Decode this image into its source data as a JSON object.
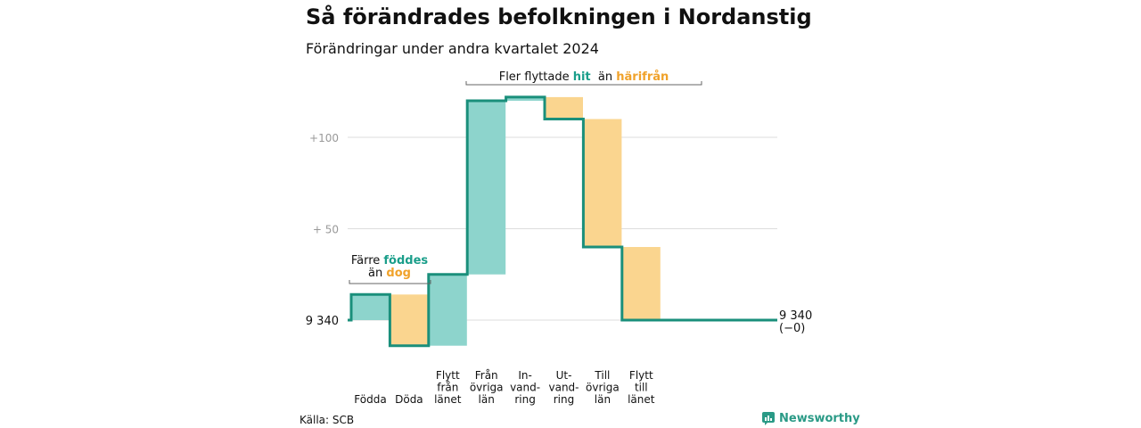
{
  "title": "Så förändrades befolkningen i Nordanstig",
  "subtitle": "Förändringar under andra kvartalet 2024",
  "source": "Källa: SCB",
  "brand": "Newsworthy",
  "colors": {
    "inflow": "#8dd4cc",
    "outflow": "#fad58f",
    "line": "#1a8f7b",
    "hit": "#1a9e8a",
    "harifran": "#f0a22a",
    "grid": "#dddddd"
  },
  "chart_data": {
    "type": "waterfall",
    "baseline": 9340,
    "start_label": "9 340",
    "end_label_1": "9 340",
    "end_label_2": "(−0)",
    "ytick_labels": [
      "+100",
      "+  50"
    ],
    "yticks": [
      100,
      50
    ],
    "ylim": [
      -15,
      125
    ],
    "categories": [
      {
        "label": [
          "Födda"
        ],
        "value": 14
      },
      {
        "label": [
          "Döda"
        ],
        "value": -28
      },
      {
        "label": [
          "Flytt",
          "från",
          "länet"
        ],
        "value": 39
      },
      {
        "label": [
          "Från",
          "övriga",
          "län"
        ],
        "value": 95
      },
      {
        "label": [
          "In-",
          "vand-",
          "ring"
        ],
        "value": 2
      },
      {
        "label": [
          "Ut-",
          "vand-",
          "ring"
        ],
        "value": -12
      },
      {
        "label": [
          "Till",
          "övriga",
          "län"
        ],
        "value": -70
      },
      {
        "label": [
          "Flytt",
          "till",
          "länet"
        ],
        "value": -40
      }
    ],
    "annotations": {
      "births": {
        "line1_pre": "Färre ",
        "line1_bold": "föddes",
        "line2_pre": "än ",
        "line2_bold": "dog"
      },
      "moves": {
        "pre": "Fler flyttade ",
        "bold1": "hit",
        "mid": "  än ",
        "bold2": "härifrån"
      }
    }
  }
}
